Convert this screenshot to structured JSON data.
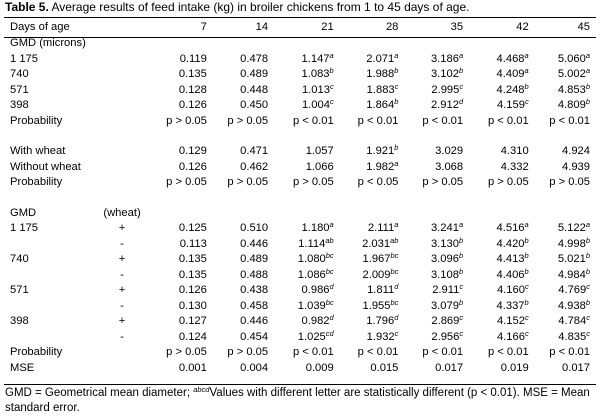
{
  "caption": {
    "label": "Table 5.",
    "text": "Average results of feed intake (kg) in broiler chickens from 1 to 45 days of age."
  },
  "header": {
    "first": "Days of age",
    "days": [
      "7",
      "14",
      "21",
      "28",
      "35",
      "42",
      "45"
    ]
  },
  "rows": [
    {
      "label": "GMD (microns)",
      "wheat": "",
      "cells": []
    },
    {
      "label": "1 175",
      "wheat": "",
      "cells": [
        [
          "0.119",
          ""
        ],
        [
          "0.478",
          ""
        ],
        [
          "1.147",
          "a"
        ],
        [
          "2.071",
          "a"
        ],
        [
          "3.186",
          "a"
        ],
        [
          "4.468",
          "a"
        ],
        [
          "5.060",
          "a"
        ]
      ]
    },
    {
      "label": "740",
      "wheat": "",
      "cells": [
        [
          "0.135",
          ""
        ],
        [
          "0.489",
          ""
        ],
        [
          "1.083",
          "b"
        ],
        [
          "1.988",
          "b"
        ],
        [
          "3.102",
          "b"
        ],
        [
          "4.409",
          "a"
        ],
        [
          "5.002",
          "a"
        ]
      ]
    },
    {
      "label": "571",
      "wheat": "",
      "cells": [
        [
          "0.128",
          ""
        ],
        [
          "0.448",
          ""
        ],
        [
          "1.013",
          "c"
        ],
        [
          "1.883",
          "c"
        ],
        [
          "2.995",
          "c"
        ],
        [
          "4.248",
          "b"
        ],
        [
          "4.853",
          "b"
        ]
      ]
    },
    {
      "label": "398",
      "wheat": "",
      "cells": [
        [
          "0.126",
          ""
        ],
        [
          "0.450",
          ""
        ],
        [
          "1.004",
          "c"
        ],
        [
          "1.864",
          "b"
        ],
        [
          "2.912",
          "d"
        ],
        [
          "4.159",
          "c"
        ],
        [
          "4.809",
          "b"
        ]
      ]
    },
    {
      "label": "Probability",
      "wheat": "",
      "cells": [
        [
          "p > 0.05",
          ""
        ],
        [
          "p > 0.05",
          ""
        ],
        [
          "p < 0.01",
          ""
        ],
        [
          "p < 0.01",
          ""
        ],
        [
          "p < 0.01",
          ""
        ],
        [
          "p < 0.01",
          ""
        ],
        [
          "p < 0.01",
          ""
        ]
      ]
    },
    {
      "blank": true
    },
    {
      "label": "With wheat",
      "wheat": "",
      "cells": [
        [
          "0.129",
          ""
        ],
        [
          "0.471",
          ""
        ],
        [
          "1.057",
          ""
        ],
        [
          "1.921",
          "b"
        ],
        [
          "3.029",
          ""
        ],
        [
          "4.310",
          ""
        ],
        [
          "4.924",
          ""
        ]
      ]
    },
    {
      "label": "Without wheat",
      "wheat": "",
      "cells": [
        [
          "0.126",
          ""
        ],
        [
          "0.462",
          ""
        ],
        [
          "1.066",
          ""
        ],
        [
          "1.982",
          "a"
        ],
        [
          "3.068",
          ""
        ],
        [
          "4.332",
          ""
        ],
        [
          "4.939",
          ""
        ]
      ]
    },
    {
      "label": "Probability",
      "wheat": "",
      "cells": [
        [
          "p > 0.05",
          ""
        ],
        [
          "p > 0.05",
          ""
        ],
        [
          "p > 0.05",
          ""
        ],
        [
          "p < 0.05",
          ""
        ],
        [
          "p > 0.05",
          ""
        ],
        [
          "p > 0.05",
          ""
        ],
        [
          "p > 0.05",
          ""
        ]
      ]
    },
    {
      "blank": true
    },
    {
      "label": "GMD",
      "wheat": "(wheat)",
      "cells": []
    },
    {
      "label": "1 175",
      "wheat": "+",
      "cells": [
        [
          "0.125",
          ""
        ],
        [
          "0.510",
          ""
        ],
        [
          "1.180",
          "a"
        ],
        [
          "2.111",
          "a"
        ],
        [
          "3.241",
          "a"
        ],
        [
          "4.516",
          "a"
        ],
        [
          "5.122",
          "a"
        ]
      ]
    },
    {
      "label": "",
      "wheat": "-",
      "cells": [
        [
          "0.113",
          ""
        ],
        [
          "0.446",
          ""
        ],
        [
          "1.114",
          "ab"
        ],
        [
          "2.031",
          "ab"
        ],
        [
          "3.130",
          "b"
        ],
        [
          "4.420",
          "b"
        ],
        [
          "4.998",
          "b"
        ]
      ]
    },
    {
      "label": "740",
      "wheat": "+",
      "cells": [
        [
          "0.135",
          ""
        ],
        [
          "0.489",
          ""
        ],
        [
          "1.080",
          "bc"
        ],
        [
          "1.967",
          "bc"
        ],
        [
          "3.096",
          "b"
        ],
        [
          "4.413",
          "b"
        ],
        [
          "5.021",
          "b"
        ]
      ]
    },
    {
      "label": "",
      "wheat": "-",
      "cells": [
        [
          "0.135",
          ""
        ],
        [
          "0.488",
          ""
        ],
        [
          "1.086",
          "bc"
        ],
        [
          "2.009",
          "bc"
        ],
        [
          "3.108",
          "b"
        ],
        [
          "4.406",
          "b"
        ],
        [
          "4.984",
          "b"
        ]
      ]
    },
    {
      "label": "571",
      "wheat": "+",
      "cells": [
        [
          "0.126",
          ""
        ],
        [
          "0.438",
          ""
        ],
        [
          "0.986",
          "d"
        ],
        [
          "1.811",
          "d"
        ],
        [
          "2.911",
          "c"
        ],
        [
          "4.160",
          "c"
        ],
        [
          "4.769",
          "c"
        ]
      ]
    },
    {
      "label": "",
      "wheat": "-",
      "cells": [
        [
          "0.130",
          ""
        ],
        [
          "0.458",
          ""
        ],
        [
          "1.039",
          "bc"
        ],
        [
          "1.955",
          "bc"
        ],
        [
          "3.079",
          "b"
        ],
        [
          "4.337",
          "b"
        ],
        [
          "4.938",
          "b"
        ]
      ]
    },
    {
      "label": "398",
      "wheat": "+",
      "cells": [
        [
          "0.127",
          ""
        ],
        [
          "0.446",
          ""
        ],
        [
          "0.982",
          "d"
        ],
        [
          "1.796",
          "d"
        ],
        [
          "2.869",
          "c"
        ],
        [
          "4.152",
          "c"
        ],
        [
          "4.784",
          "c"
        ]
      ]
    },
    {
      "label": "",
      "wheat": "-",
      "cells": [
        [
          "0.124",
          ""
        ],
        [
          "0.454",
          ""
        ],
        [
          "1.025",
          "cd"
        ],
        [
          "1.932",
          "c"
        ],
        [
          "2.956",
          "c"
        ],
        [
          "4.166",
          "c"
        ],
        [
          "4.835",
          "c"
        ]
      ]
    },
    {
      "label": "Probability",
      "wheat": "",
      "cells": [
        [
          "p > 0.05",
          ""
        ],
        [
          "p > 0.05",
          ""
        ],
        [
          "p < 0.01",
          ""
        ],
        [
          "p < 0.01",
          ""
        ],
        [
          "p < 0.01",
          ""
        ],
        [
          "p < 0.01",
          ""
        ],
        [
          "p < 0.01",
          ""
        ]
      ]
    },
    {
      "label": "MSE",
      "wheat": "",
      "cells": [
        [
          "0.001",
          ""
        ],
        [
          "0.004",
          ""
        ],
        [
          "0.009",
          ""
        ],
        [
          "0.015",
          ""
        ],
        [
          "0.017",
          ""
        ],
        [
          "0.019",
          ""
        ],
        [
          "0.017",
          ""
        ]
      ]
    }
  ],
  "footnote": {
    "part1": "GMD = Geometrical mean diameter; ",
    "sup": "abcd",
    "part2": "Values with different letter are statistically different (p < 0.01). MSE = Mean standard error."
  }
}
